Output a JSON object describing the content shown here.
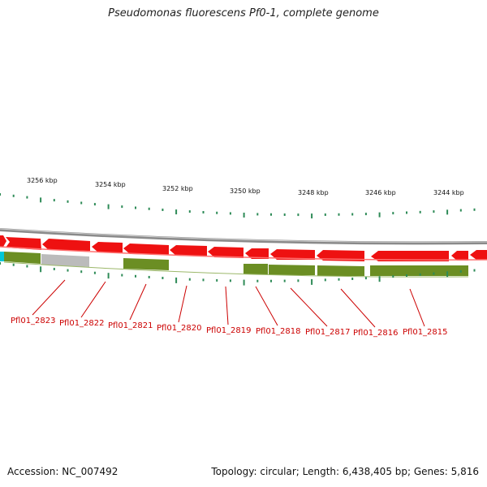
{
  "title": "Pseudomonas fluorescens Pf0-1, complete genome",
  "footer": {
    "accession": "Accession: NC_007492",
    "summary": "Topology: circular; Length: 6,438,405 bp; Genes: 5,816"
  },
  "colors": {
    "backbone": "#8a8a8a",
    "forward_gene": "#ee1111",
    "reverse_gene": "#6b8e23",
    "other_feature": "#bbbbbb",
    "highlight": "#00c8d8",
    "tick": "#2e8b57",
    "label": "#cc0000"
  },
  "scale": {
    "unit": "kbp",
    "labels": [
      "3256 kbp",
      "3254 kbp",
      "3252 kbp",
      "3250 kbp",
      "3248 kbp",
      "3246 kbp",
      "3244 kbp"
    ]
  },
  "genes": [
    {
      "name": "Pfl01_2823"
    },
    {
      "name": "Pfl01_2822"
    },
    {
      "name": "Pfl01_2821"
    },
    {
      "name": "Pfl01_2820"
    },
    {
      "name": "Pfl01_2819"
    },
    {
      "name": "Pfl01_2818"
    },
    {
      "name": "Pfl01_2817"
    },
    {
      "name": "Pfl01_2816"
    },
    {
      "name": "Pfl01_2815"
    }
  ]
}
